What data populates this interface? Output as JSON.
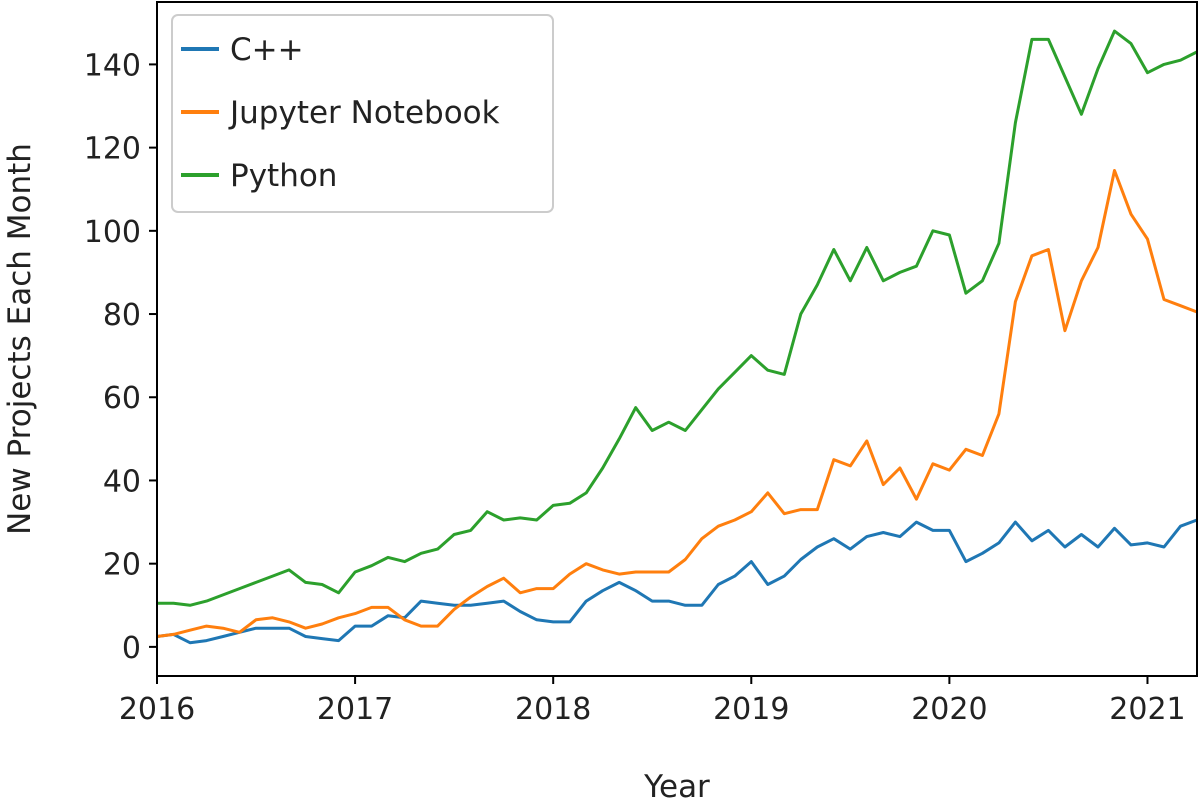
{
  "chart_data": {
    "type": "line",
    "title": "",
    "xlabel": "Year",
    "ylabel": "New Projects Each Month",
    "xlim": [
      2016.0,
      2021.25
    ],
    "ylim": [
      -7,
      155
    ],
    "x_ticks": [
      {
        "value": 2016,
        "label": "2016"
      },
      {
        "value": 2017,
        "label": "2017"
      },
      {
        "value": 2018,
        "label": "2018"
      },
      {
        "value": 2019,
        "label": "2019"
      },
      {
        "value": 2020,
        "label": "2020"
      },
      {
        "value": 2021,
        "label": "2021"
      }
    ],
    "y_ticks": [
      {
        "value": 0,
        "label": "0"
      },
      {
        "value": 20,
        "label": "20"
      },
      {
        "value": 40,
        "label": "40"
      },
      {
        "value": 60,
        "label": "60"
      },
      {
        "value": 80,
        "label": "80"
      },
      {
        "value": 100,
        "label": "100"
      },
      {
        "value": 120,
        "label": "120"
      },
      {
        "value": 140,
        "label": "140"
      }
    ],
    "grid": false,
    "legend_position": "top-left",
    "x": [
      "2016-01",
      "2016-02",
      "2016-03",
      "2016-04",
      "2016-05",
      "2016-06",
      "2016-07",
      "2016-08",
      "2016-09",
      "2016-10",
      "2016-11",
      "2016-12",
      "2017-01",
      "2017-02",
      "2017-03",
      "2017-04",
      "2017-05",
      "2017-06",
      "2017-07",
      "2017-08",
      "2017-09",
      "2017-10",
      "2017-11",
      "2017-12",
      "2018-01",
      "2018-02",
      "2018-03",
      "2018-04",
      "2018-05",
      "2018-06",
      "2018-07",
      "2018-08",
      "2018-09",
      "2018-10",
      "2018-11",
      "2018-12",
      "2019-01",
      "2019-02",
      "2019-03",
      "2019-04",
      "2019-05",
      "2019-06",
      "2019-07",
      "2019-08",
      "2019-09",
      "2019-10",
      "2019-11",
      "2019-12",
      "2020-01",
      "2020-02",
      "2020-03",
      "2020-04",
      "2020-05",
      "2020-06",
      "2020-07",
      "2020-08",
      "2020-09",
      "2020-10",
      "2020-11",
      "2020-12",
      "2021-01",
      "2021-02",
      "2021-03",
      "2021-04"
    ],
    "series": [
      {
        "name": "C++",
        "color": "#1f77b4",
        "values": [
          2.5,
          3,
          1,
          1.5,
          2.5,
          3.5,
          4.5,
          4.5,
          4.5,
          2.5,
          2,
          1.5,
          5,
          5,
          7.5,
          7,
          11,
          10.5,
          10,
          10,
          10.5,
          11,
          8.5,
          6.5,
          6,
          6,
          11,
          13.5,
          15.5,
          13.5,
          11,
          11,
          10,
          10,
          15,
          17,
          20.5,
          15,
          17,
          21,
          24,
          26,
          23.5,
          26.5,
          27.5,
          26.5,
          30,
          28,
          28,
          20.5,
          22.5,
          25,
          30,
          25.5,
          28,
          24,
          27,
          24,
          28.5,
          24.5,
          25,
          24,
          29,
          30.5
        ]
      },
      {
        "name": "Jupyter Notebook",
        "color": "#ff7f0e",
        "values": [
          2.5,
          3,
          4,
          5,
          4.5,
          3.5,
          6.5,
          7,
          6,
          4.5,
          5.5,
          7,
          8,
          9.5,
          9.5,
          6.5,
          5,
          5,
          9,
          12,
          14.5,
          16.5,
          13,
          14,
          14,
          17.5,
          20,
          18.5,
          17.5,
          18,
          18,
          18,
          21,
          26,
          29,
          30.5,
          32.5,
          37,
          32,
          33,
          33,
          45,
          43.5,
          49.5,
          39,
          43,
          35.5,
          44,
          42.5,
          47.5,
          46,
          56,
          83,
          94,
          95.5,
          76,
          88,
          96,
          114.5,
          104,
          98,
          83.5,
          82,
          80.5
        ]
      },
      {
        "name": "Python",
        "color": "#2ca02c",
        "values": [
          10.5,
          10.5,
          10,
          11,
          12.5,
          14,
          15.5,
          17,
          18.5,
          15.5,
          15,
          13,
          18,
          19.5,
          21.5,
          20.5,
          22.5,
          23.5,
          27,
          28,
          32.5,
          30.5,
          31,
          30.5,
          34,
          34.5,
          37,
          43,
          50,
          57.5,
          52,
          54,
          52,
          57,
          62,
          66,
          70,
          66.5,
          65.5,
          80,
          87,
          95.5,
          88,
          96,
          88,
          90,
          91.5,
          100,
          99,
          85,
          88,
          97,
          126,
          146,
          146,
          137,
          128,
          139,
          148,
          145,
          138,
          140,
          141,
          143
        ]
      }
    ]
  }
}
